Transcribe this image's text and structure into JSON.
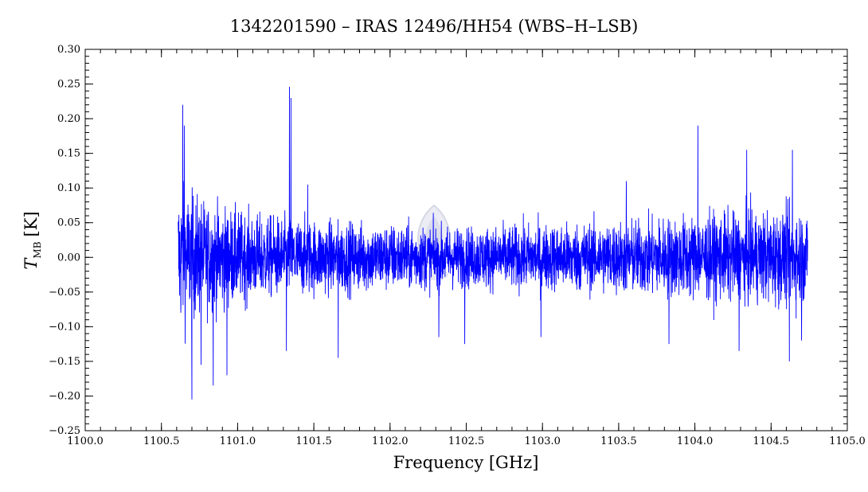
{
  "chart_data": {
    "type": "line",
    "title": "1342201590 – IRAS 12496/HH54 (WBS–H–LSB)",
    "xlabel": "Frequency [GHz]",
    "ylabel_main": "T",
    "ylabel_sub": "MB",
    "ylabel_unit": "[K]",
    "xlim": [
      1100.0,
      1105.0
    ],
    "ylim": [
      -0.25,
      0.3
    ],
    "x_ticks": [
      "1100.0",
      "1100.5",
      "1101.0",
      "1101.5",
      "1102.0",
      "1102.5",
      "1103.0",
      "1103.5",
      "1104.0",
      "1104.5",
      "1105.0"
    ],
    "y_ticks": [
      "−0.25",
      "−0.20",
      "−0.15",
      "−0.10",
      "−0.05",
      "0.00",
      "0.05",
      "0.10",
      "0.15",
      "0.20",
      "0.25",
      "0.30"
    ],
    "grid": false,
    "series": [
      {
        "color": "#0000ff",
        "x_range": [
          1100.61,
          1104.74
        ],
        "noise_envelope": [
          {
            "x": 1100.61,
            "sigma": 0.06
          },
          {
            "x": 1100.8,
            "sigma": 0.045
          },
          {
            "x": 1101.1,
            "sigma": 0.035
          },
          {
            "x": 1101.6,
            "sigma": 0.03
          },
          {
            "x": 1102.5,
            "sigma": 0.025
          },
          {
            "x": 1103.5,
            "sigma": 0.03
          },
          {
            "x": 1104.0,
            "sigma": 0.035
          },
          {
            "x": 1104.74,
            "sigma": 0.04
          }
        ],
        "spikes": [
          {
            "x": 1100.64,
            "y": 0.22
          },
          {
            "x": 1100.65,
            "y": 0.19
          },
          {
            "x": 1100.7,
            "y": -0.205
          },
          {
            "x": 1100.76,
            "y": -0.155
          },
          {
            "x": 1100.84,
            "y": -0.185
          },
          {
            "x": 1100.93,
            "y": -0.17
          },
          {
            "x": 1101.34,
            "y": 0.246
          },
          {
            "x": 1101.35,
            "y": 0.23
          },
          {
            "x": 1101.32,
            "y": -0.135
          },
          {
            "x": 1101.66,
            "y": -0.145
          },
          {
            "x": 1101.46,
            "y": 0.105
          },
          {
            "x": 1102.49,
            "y": -0.125
          },
          {
            "x": 1102.99,
            "y": -0.115
          },
          {
            "x": 1103.83,
            "y": -0.125
          },
          {
            "x": 1104.02,
            "y": 0.19
          },
          {
            "x": 1104.34,
            "y": 0.155
          },
          {
            "x": 1104.29,
            "y": -0.135
          },
          {
            "x": 1104.62,
            "y": -0.15
          },
          {
            "x": 1104.64,
            "y": 0.155
          },
          {
            "x": 1104.7,
            "y": -0.12
          },
          {
            "x": 1102.32,
            "y": -0.115
          },
          {
            "x": 1103.55,
            "y": 0.11
          }
        ]
      }
    ]
  }
}
